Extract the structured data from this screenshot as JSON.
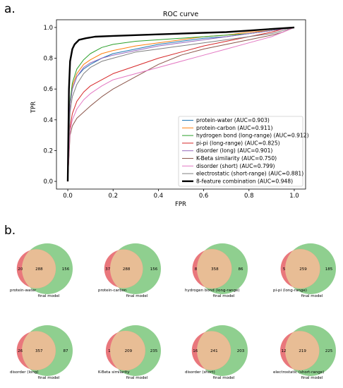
{
  "panel_labels": {
    "a": "a.",
    "b": "b."
  },
  "chart_data": [
    {
      "type": "line",
      "title": "ROC curve",
      "xlabel": "FPR",
      "ylabel": "TPR",
      "xlim": [
        0,
        1
      ],
      "ylim": [
        0,
        1
      ],
      "xticks": [
        "0.0",
        "0.2",
        "0.4",
        "0.6",
        "0.8",
        "1.0"
      ],
      "yticks": [
        "0.0",
        "0.2",
        "0.4",
        "0.6",
        "0.8",
        "1.0"
      ],
      "grid": false,
      "legend_position": "bottom-right",
      "series": [
        {
          "name": "protein-water (AUC=0.903)",
          "color": "#1f77b4",
          "width": 1.0,
          "x": [
            0,
            0.01,
            0.02,
            0.04,
            0.07,
            0.1,
            0.15,
            0.2,
            0.3,
            0.4,
            0.5,
            0.6,
            0.7,
            0.8,
            0.9,
            0.95,
            1.0
          ],
          "y": [
            0,
            0.5,
            0.6,
            0.68,
            0.73,
            0.76,
            0.8,
            0.83,
            0.86,
            0.89,
            0.91,
            0.93,
            0.94,
            0.96,
            0.98,
            0.99,
            1.0
          ]
        },
        {
          "name": "protein-carbon (AUC=0.911)",
          "color": "#ff7f0e",
          "width": 1.0,
          "x": [
            0,
            0.01,
            0.02,
            0.04,
            0.07,
            0.1,
            0.15,
            0.2,
            0.3,
            0.4,
            0.5,
            0.6,
            0.7,
            0.8,
            0.9,
            0.95,
            1.0
          ],
          "y": [
            0,
            0.5,
            0.62,
            0.7,
            0.76,
            0.79,
            0.83,
            0.85,
            0.88,
            0.9,
            0.92,
            0.94,
            0.95,
            0.97,
            0.98,
            0.99,
            1.0
          ]
        },
        {
          "name": "hydrogen bond (long-range) (AUC=0.912)",
          "color": "#2ca02c",
          "width": 1.0,
          "x": [
            0,
            0.01,
            0.02,
            0.04,
            0.07,
            0.1,
            0.15,
            0.2,
            0.3,
            0.4,
            0.5,
            0.6,
            0.7,
            0.8,
            0.9,
            0.95,
            1.0
          ],
          "y": [
            0,
            0.52,
            0.64,
            0.73,
            0.79,
            0.83,
            0.87,
            0.89,
            0.91,
            0.92,
            0.93,
            0.94,
            0.95,
            0.96,
            0.98,
            0.99,
            1.0
          ]
        },
        {
          "name": "pi-pi (long-range) (AUC=0.825)",
          "color": "#d62728",
          "width": 1.0,
          "x": [
            0,
            0.01,
            0.02,
            0.04,
            0.07,
            0.1,
            0.15,
            0.2,
            0.3,
            0.4,
            0.5,
            0.6,
            0.7,
            0.8,
            0.9,
            0.95,
            1.0
          ],
          "y": [
            0,
            0.35,
            0.44,
            0.52,
            0.58,
            0.62,
            0.66,
            0.7,
            0.75,
            0.8,
            0.84,
            0.88,
            0.91,
            0.94,
            0.97,
            0.99,
            1.0
          ]
        },
        {
          "name": "disorder (long) (AUC=0.901)",
          "color": "#9467bd",
          "width": 1.0,
          "x": [
            0,
            0.01,
            0.02,
            0.04,
            0.07,
            0.1,
            0.15,
            0.2,
            0.3,
            0.4,
            0.5,
            0.6,
            0.7,
            0.8,
            0.9,
            0.95,
            1.0
          ],
          "y": [
            0,
            0.5,
            0.6,
            0.68,
            0.74,
            0.77,
            0.8,
            0.82,
            0.85,
            0.88,
            0.9,
            0.92,
            0.94,
            0.96,
            0.98,
            0.99,
            1.0
          ]
        },
        {
          "name": "K-Beta similarity (AUC=0.750)",
          "color": "#8c564b",
          "width": 1.0,
          "x": [
            0,
            0.01,
            0.02,
            0.04,
            0.07,
            0.1,
            0.15,
            0.2,
            0.3,
            0.4,
            0.5,
            0.6,
            0.7,
            0.8,
            0.9,
            0.95,
            1.0
          ],
          "y": [
            0,
            0.3,
            0.36,
            0.41,
            0.45,
            0.49,
            0.55,
            0.6,
            0.68,
            0.76,
            0.82,
            0.86,
            0.89,
            0.92,
            0.95,
            0.97,
            1.0
          ]
        },
        {
          "name": "disorder (short) (AUC=0.799)",
          "color": "#e377c2",
          "width": 1.0,
          "x": [
            0,
            0.01,
            0.02,
            0.04,
            0.07,
            0.1,
            0.15,
            0.2,
            0.3,
            0.4,
            0.5,
            0.6,
            0.7,
            0.8,
            0.9,
            0.95,
            1.0
          ],
          "y": [
            0,
            0.33,
            0.4,
            0.47,
            0.53,
            0.57,
            0.62,
            0.66,
            0.7,
            0.74,
            0.78,
            0.82,
            0.86,
            0.9,
            0.94,
            0.97,
            1.0
          ]
        },
        {
          "name": "electrostatic (short-range) (AUC=0.881)",
          "color": "#7f7f7f",
          "width": 1.0,
          "x": [
            0,
            0.01,
            0.02,
            0.04,
            0.07,
            0.1,
            0.15,
            0.2,
            0.3,
            0.4,
            0.5,
            0.6,
            0.7,
            0.8,
            0.9,
            0.95,
            1.0
          ],
          "y": [
            0,
            0.45,
            0.55,
            0.63,
            0.7,
            0.74,
            0.78,
            0.8,
            0.84,
            0.86,
            0.88,
            0.9,
            0.92,
            0.94,
            0.96,
            0.98,
            1.0
          ]
        },
        {
          "name": "8-feature combination (AUC=0.948)",
          "color": "#000000",
          "width": 2.4,
          "x": [
            0,
            0.005,
            0.01,
            0.02,
            0.03,
            0.05,
            0.08,
            0.12,
            0.2,
            0.3,
            0.4,
            0.5,
            0.6,
            0.7,
            0.8,
            0.9,
            1.0
          ],
          "y": [
            0,
            0.6,
            0.78,
            0.86,
            0.89,
            0.92,
            0.93,
            0.94,
            0.945,
            0.95,
            0.955,
            0.96,
            0.965,
            0.97,
            0.98,
            0.99,
            1.0
          ]
        }
      ]
    },
    {
      "type": "venn",
      "diagrams": [
        {
          "left_label": "protein-water",
          "right_label": "final model",
          "left_only": "20",
          "overlap": "288",
          "right_only": "156",
          "left_share": 0.063
        },
        {
          "left_label": "protein-carbon",
          "right_label": "final model",
          "left_only": "37",
          "overlap": "288",
          "right_only": "156",
          "left_share": 0.114
        },
        {
          "left_label": "hydrogen bond (long-range)",
          "right_label": "final model",
          "left_only": "8",
          "overlap": "358",
          "right_only": "86",
          "left_share": 0.022
        },
        {
          "left_label": "pi-pi (long-range)",
          "right_label": "final model",
          "left_only": "5",
          "overlap": "259",
          "right_only": "185",
          "left_share": 0.019
        },
        {
          "left_label": "disorder (long)",
          "right_label": "final model",
          "left_only": "26",
          "overlap": "357",
          "right_only": "87",
          "left_share": 0.068
        },
        {
          "left_label": "K-Beta similarity",
          "right_label": "final model",
          "left_only": "1",
          "overlap": "209",
          "right_only": "235",
          "left_share": 0.005
        },
        {
          "left_label": "disorder (short)",
          "right_label": "final model",
          "left_only": "16",
          "overlap": "241",
          "right_only": "203",
          "left_share": 0.062
        },
        {
          "left_label": "electrostatic (short-range)",
          "right_label": "final model",
          "left_only": "12",
          "overlap": "219",
          "right_only": "225",
          "left_share": 0.052
        }
      ]
    }
  ],
  "colors": {
    "venn_left": "#e9777c",
    "venn_right": "#8fcf8f",
    "venn_overlap": "#e8bd95"
  }
}
